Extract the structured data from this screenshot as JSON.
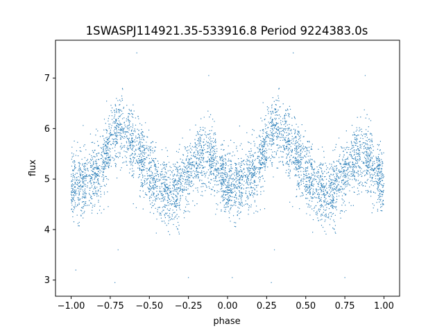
{
  "chart_data": {
    "type": "scatter",
    "title": "1SWASPJ114921.35-533916.8 Period 9224383.0s",
    "xlabel": "phase",
    "ylabel": "flux",
    "xlim": [
      -1.1,
      1.1
    ],
    "ylim": [
      2.68,
      7.75
    ],
    "xticks": [
      -1.0,
      -0.75,
      -0.5,
      -0.25,
      0.0,
      0.25,
      0.5,
      0.75,
      1.0
    ],
    "xtick_labels": [
      "−1.00",
      "−0.75",
      "−0.50",
      "−0.25",
      "0.00",
      "0.25",
      "0.50",
      "0.75",
      "1.00"
    ],
    "yticks": [
      3,
      4,
      5,
      6,
      7
    ],
    "ytick_labels": [
      "3",
      "4",
      "5",
      "6",
      "7"
    ],
    "grid": false,
    "marker_color": "#1f77b4",
    "period_shape": {
      "description_of_series": "phase-folded light curve, repeated for phase -1..0 and 0..1",
      "phase": [
        0.0,
        0.1,
        0.2,
        0.3,
        0.35,
        0.45,
        0.55,
        0.65,
        0.75,
        0.85,
        0.9,
        1.0
      ],
      "mean_flux": [
        4.85,
        4.95,
        5.25,
        6.0,
        5.9,
        5.4,
        4.85,
        4.65,
        5.15,
        5.5,
        5.45,
        4.85
      ],
      "scatter_sigma": 0.33
    },
    "outliers": [
      {
        "x": -0.97,
        "y": 3.2
      },
      {
        "x": -0.72,
        "y": 2.95
      },
      {
        "x": -0.25,
        "y": 3.05
      },
      {
        "x": 0.03,
        "y": 3.05
      },
      {
        "x": 0.28,
        "y": 2.95
      },
      {
        "x": 0.75,
        "y": 3.05
      },
      {
        "x": -0.58,
        "y": 7.5
      },
      {
        "x": 0.42,
        "y": 7.5
      },
      {
        "x": -0.12,
        "y": 7.05
      },
      {
        "x": 0.88,
        "y": 7.05
      },
      {
        "x": -0.7,
        "y": 3.6
      },
      {
        "x": 0.3,
        "y": 3.6
      }
    ]
  }
}
